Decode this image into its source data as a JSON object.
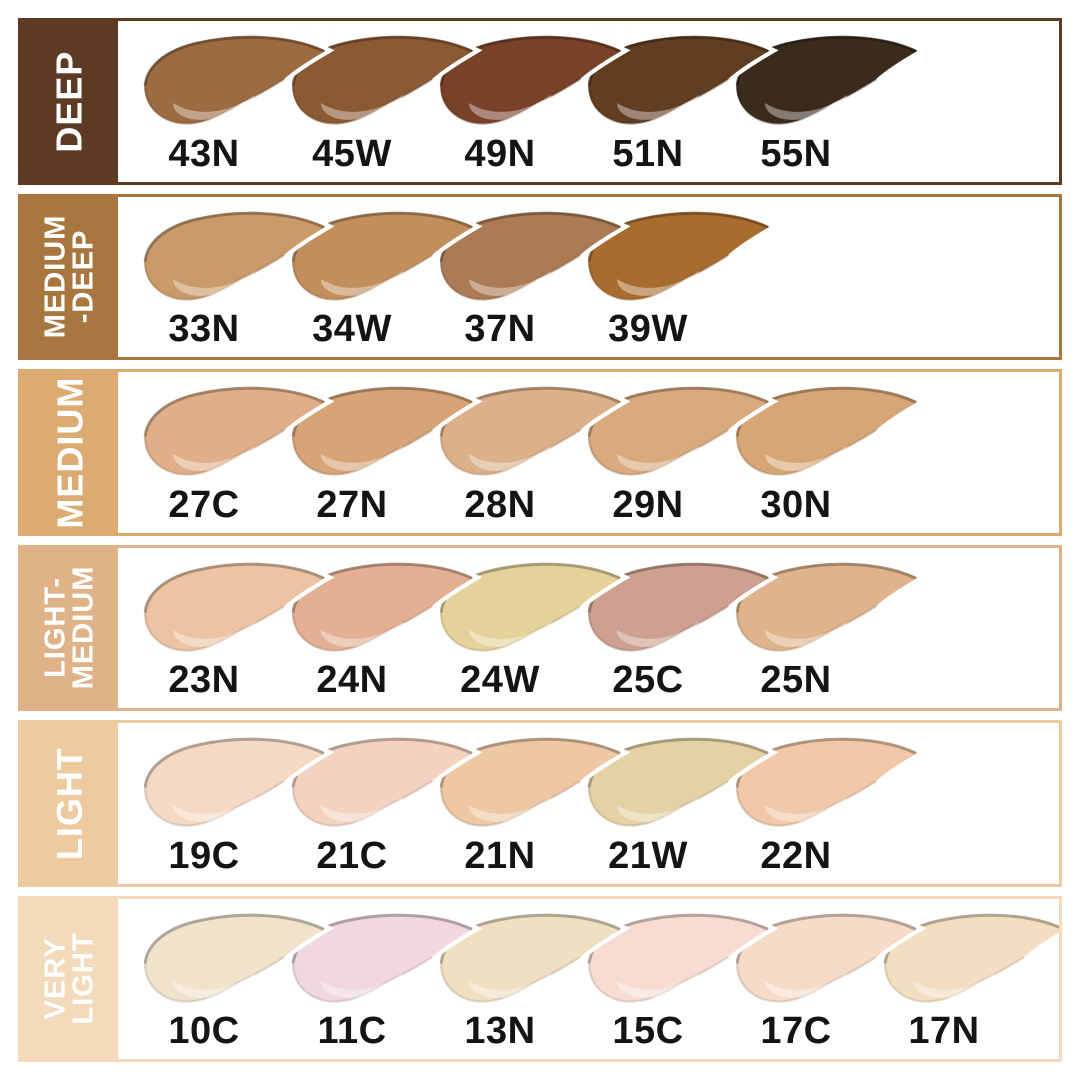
{
  "page": {
    "background": "#ffffff",
    "sidebar_text_color": "#ffffff",
    "shade_code_color": "#141414"
  },
  "rows": [
    {
      "category": "DEEP",
      "label_lines": [
        "DEEP"
      ],
      "sidebar_color": "#5d3a23",
      "border_color": "#5d3a23",
      "shades": [
        {
          "code": "43N",
          "color": "#9c6b42"
        },
        {
          "code": "45W",
          "color": "#8a5a33"
        },
        {
          "code": "49N",
          "color": "#7a4129"
        },
        {
          "code": "51N",
          "color": "#613d22"
        },
        {
          "code": "55N",
          "color": "#3b2b1d"
        }
      ]
    },
    {
      "category": "MEDIUM-DEEP",
      "label_lines": [
        "MEDIUM",
        "-DEEP"
      ],
      "sidebar_color": "#a8773f",
      "border_color": "#a8773f",
      "shades": [
        {
          "code": "33N",
          "color": "#c99a6a"
        },
        {
          "code": "34W",
          "color": "#c28e5c"
        },
        {
          "code": "37N",
          "color": "#ab7b55"
        },
        {
          "code": "39W",
          "color": "#a96c2f"
        }
      ]
    },
    {
      "category": "MEDIUM",
      "label_lines": [
        "MEDIUM"
      ],
      "sidebar_color": "#dcab72",
      "border_color": "#dcab72",
      "shades": [
        {
          "code": "27C",
          "color": "#e0ae88"
        },
        {
          "code": "27N",
          "color": "#d6a476"
        },
        {
          "code": "28N",
          "color": "#dcb189"
        },
        {
          "code": "29N",
          "color": "#d9aa7d"
        },
        {
          "code": "30N",
          "color": "#d7a676"
        }
      ]
    },
    {
      "category": "LIGHT-MEDIUM",
      "label_lines": [
        "LIGHT-",
        "MEDIUM"
      ],
      "sidebar_color": "#dfb287",
      "border_color": "#dfb287",
      "shades": [
        {
          "code": "23N",
          "color": "#ecc3a3"
        },
        {
          "code": "24N",
          "color": "#e3b093"
        },
        {
          "code": "24W",
          "color": "#e5d29a"
        },
        {
          "code": "25C",
          "color": "#cda08f"
        },
        {
          "code": "25N",
          "color": "#dfb48c"
        }
      ]
    },
    {
      "category": "LIGHT",
      "label_lines": [
        "LIGHT"
      ],
      "sidebar_color": "#eeca9f",
      "border_color": "#eeca9f",
      "shades": [
        {
          "code": "19C",
          "color": "#f5d9c4"
        },
        {
          "code": "21C",
          "color": "#f4d2c0"
        },
        {
          "code": "21N",
          "color": "#eec8a4"
        },
        {
          "code": "21W",
          "color": "#e5d2a4"
        },
        {
          "code": "22N",
          "color": "#f1c8a8"
        }
      ]
    },
    {
      "category": "VERY LIGHT",
      "label_lines": [
        "VERY",
        "LIGHT"
      ],
      "sidebar_color": "#f2dabb",
      "border_color": "#f2dabb",
      "shades": [
        {
          "code": "10C",
          "color": "#f1e2cc"
        },
        {
          "code": "11C",
          "color": "#f1d7de"
        },
        {
          "code": "13N",
          "color": "#f1dfc2"
        },
        {
          "code": "15C",
          "color": "#f8dcd2"
        },
        {
          "code": "17C",
          "color": "#f7dbc9"
        },
        {
          "code": "17N",
          "color": "#f4dec1"
        }
      ]
    }
  ]
}
